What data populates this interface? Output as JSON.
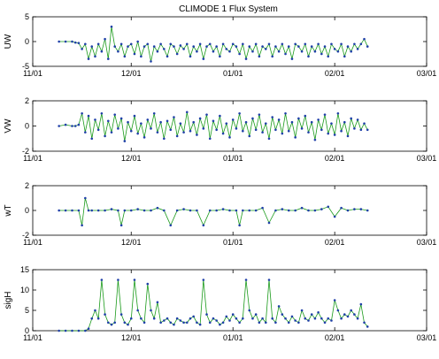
{
  "chart_data": {
    "title": "CLIMODE 1 Flux System",
    "type": "line",
    "x_tick_labels": [
      "11/01",
      "12/01",
      "01/01",
      "02/01",
      "03/01"
    ],
    "x_ticks_day_of_season": [
      0,
      30,
      61,
      92,
      120
    ],
    "colors": {
      "line": "#1a9a1a",
      "markers": "#1f3fa8"
    },
    "panels": [
      {
        "ylabel": "UW",
        "ylim": [
          -5,
          5
        ],
        "yticks": [
          -5,
          0,
          5
        ],
        "notes": "roughly 0 from day 8 to 14, then noisy negative spikes to about -4.5, occasional positive spikes to ~3 near day 24",
        "series": [
          {
            "x": [
              8,
              10,
              12,
              13,
              14,
              15,
              16,
              17,
              18,
              19,
              20,
              21,
              22,
              23,
              24,
              25,
              26,
              27,
              28,
              29,
              30,
              31,
              32,
              33,
              34,
              35,
              36,
              37,
              38,
              39,
              40,
              41,
              42,
              43,
              44,
              45,
              46,
              47,
              48,
              49,
              50,
              51,
              52,
              53,
              54,
              55,
              56,
              57,
              58,
              59,
              60,
              61,
              62,
              63,
              64,
              65,
              66,
              67,
              68,
              69,
              70,
              71,
              72,
              73,
              74,
              75,
              76,
              77,
              78,
              79,
              80,
              81,
              82,
              83,
              84,
              85,
              86,
              87,
              88,
              89,
              90,
              91,
              92,
              93,
              94,
              95,
              96,
              97,
              98,
              99,
              100,
              101,
              102
            ],
            "values": [
              0,
              0,
              0,
              -0.2,
              -0.3,
              -1.5,
              -0.5,
              -3.5,
              -1,
              -3,
              -0.5,
              -2,
              0.5,
              -3.5,
              3,
              -1,
              -2,
              -0.5,
              -3,
              -1,
              -0.5,
              -2.5,
              0,
              -3,
              -1,
              -0.5,
              -4,
              -1,
              -2,
              -0.5,
              -1.5,
              -3,
              -0.5,
              -1,
              -2.5,
              -0.8,
              -1.5,
              -0.5,
              -3,
              -1,
              -2,
              -0.5,
              -3.5,
              -1,
              -0.5,
              -2,
              -1,
              -3,
              -0.5,
              -1.5,
              -2,
              -0.5,
              -1,
              -2.5,
              -0.5,
              -3.5,
              -1,
              -2,
              -0.5,
              -3,
              -1,
              -1.5,
              -0.5,
              -3,
              -1,
              -2,
              -0.5,
              -2.5,
              -1,
              -3.5,
              -0.5,
              -1,
              -2,
              -0.5,
              -3,
              -1,
              -2,
              -0.5,
              -2.5,
              -1,
              -3,
              -0.5,
              -1.5,
              -2,
              -0.5,
              -3,
              -1,
              -2,
              -0.5,
              -1.5,
              -0.5,
              0.5,
              -1
            ]
          }
        ]
      },
      {
        "ylabel": "VW",
        "ylim": [
          -2,
          2
        ],
        "yticks": [
          -2,
          0,
          2
        ],
        "notes": "symmetric noise around 0 with amplitude up to about 1.3",
        "series": [
          {
            "x": [
              8,
              10,
              12,
              13,
              14,
              15,
              16,
              17,
              18,
              19,
              20,
              21,
              22,
              23,
              24,
              25,
              26,
              27,
              28,
              29,
              30,
              31,
              32,
              33,
              34,
              35,
              36,
              37,
              38,
              39,
              40,
              41,
              42,
              43,
              44,
              45,
              46,
              47,
              48,
              49,
              50,
              51,
              52,
              53,
              54,
              55,
              56,
              57,
              58,
              59,
              60,
              61,
              62,
              63,
              64,
              65,
              66,
              67,
              68,
              69,
              70,
              71,
              72,
              73,
              74,
              75,
              76,
              77,
              78,
              79,
              80,
              81,
              82,
              83,
              84,
              85,
              86,
              87,
              88,
              89,
              90,
              91,
              92,
              93,
              94,
              95,
              96,
              97,
              98,
              99,
              100,
              101,
              102
            ],
            "values": [
              0,
              0.1,
              0,
              0,
              0.1,
              1,
              -0.5,
              0.8,
              -1,
              0.5,
              -0.3,
              1,
              -0.8,
              0.4,
              -0.5,
              0.9,
              -0.2,
              0.6,
              -1.2,
              0.3,
              -0.4,
              0.8,
              -0.6,
              0.2,
              -0.9,
              0.5,
              -0.2,
              1,
              -0.5,
              0.3,
              -1,
              0.4,
              -0.3,
              0.7,
              -0.8,
              0.2,
              -0.5,
              1.1,
              -0.4,
              0.3,
              -0.7,
              0.6,
              -0.2,
              0.9,
              -1,
              0.4,
              -0.3,
              0.8,
              -0.6,
              0.2,
              -0.9,
              0.5,
              -0.2,
              1,
              -0.4,
              0.3,
              -0.8,
              0.6,
              -0.3,
              0.9,
              -0.5,
              0.2,
              -1,
              0.7,
              -0.3,
              0.5,
              -0.6,
              1,
              -0.4,
              0.3,
              -0.9,
              0.6,
              -0.2,
              0.8,
              -0.5,
              0.3,
              -1.1,
              0.5,
              -0.3,
              0.9,
              -0.6,
              0.2,
              -0.7,
              1,
              -0.4,
              0.3,
              -0.8,
              0.6,
              -0.2,
              0.5,
              -0.3,
              0.2,
              -0.3
            ]
          }
        ]
      },
      {
        "ylabel": "wT",
        "ylim": [
          -2,
          2
        ],
        "yticks": [
          -2,
          0,
          2
        ],
        "notes": "near 0 with rare spikes: +1 near day 16, about -1.2 near days 15, 27, 42, 52, 63, 72",
        "series": [
          {
            "x": [
              8,
              10,
              12,
              14,
              15,
              16,
              17,
              18,
              20,
              22,
              24,
              26,
              27,
              28,
              30,
              32,
              34,
              36,
              38,
              40,
              42,
              44,
              46,
              48,
              50,
              52,
              54,
              56,
              58,
              60,
              62,
              63,
              64,
              66,
              68,
              70,
              72,
              74,
              76,
              78,
              80,
              82,
              84,
              86,
              88,
              90,
              92,
              94,
              96,
              98,
              100,
              102
            ],
            "values": [
              0,
              0,
              0,
              0,
              -1.2,
              1,
              0,
              0,
              0,
              0,
              0.1,
              0,
              -1.2,
              0,
              0,
              0.1,
              0,
              0,
              0.2,
              0,
              -1.2,
              0,
              0.1,
              0,
              0,
              -1.2,
              0,
              0,
              0.1,
              0,
              0,
              -1.2,
              0,
              0,
              0,
              0.2,
              -1,
              0,
              0.1,
              0,
              0,
              0.2,
              0,
              0,
              0.1,
              0.3,
              -0.5,
              0.2,
              0,
              0.1,
              0.1,
              0
            ]
          }
        ]
      },
      {
        "ylabel": "sigH",
        "ylim": [
          0,
          15
        ],
        "yticks": [
          0,
          5,
          10,
          15
        ],
        "notes": "0 until day 17, then around 1–4 with tall spikes near 12.5 and dips back",
        "series": [
          {
            "x": [
              8,
              10,
              12,
              14,
              16,
              17,
              18,
              19,
              20,
              21,
              22,
              23,
              24,
              25,
              26,
              27,
              28,
              29,
              30,
              31,
              32,
              33,
              34,
              35,
              36,
              37,
              38,
              39,
              40,
              41,
              42,
              43,
              44,
              45,
              46,
              47,
              48,
              49,
              50,
              51,
              52,
              53,
              54,
              55,
              56,
              57,
              58,
              59,
              60,
              61,
              62,
              63,
              64,
              65,
              66,
              67,
              68,
              69,
              70,
              71,
              72,
              73,
              74,
              75,
              76,
              77,
              78,
              79,
              80,
              81,
              82,
              83,
              84,
              85,
              86,
              87,
              88,
              89,
              90,
              91,
              92,
              93,
              94,
              95,
              96,
              97,
              98,
              99,
              100,
              101,
              102
            ],
            "values": [
              0,
              0,
              0,
              0,
              0,
              0.5,
              3,
              5,
              3,
              12.5,
              4,
              2,
              1.5,
              2,
              12.5,
              4,
              2,
              1.5,
              3,
              12.5,
              5,
              3,
              2,
              11.5,
              5,
              3,
              7,
              2,
              2.5,
              3,
              2,
              1.5,
              3,
              2.5,
              2,
              2,
              3,
              3.5,
              2,
              1.5,
              12.5,
              4,
              2,
              3,
              2.5,
              1.5,
              2,
              3.5,
              2.5,
              4,
              3,
              2,
              3,
              12.5,
              5,
              3,
              4,
              2,
              3,
              2,
              12.5,
              3,
              2,
              6,
              4,
              3,
              2,
              3.5,
              2.5,
              2,
              5,
              3,
              2.5,
              4,
              3,
              4.5,
              3,
              2,
              3,
              2.5,
              7.5,
              5,
              3,
              4,
              3.5,
              5,
              4,
              3,
              6.5,
              2,
              1
            ]
          }
        ]
      }
    ]
  }
}
